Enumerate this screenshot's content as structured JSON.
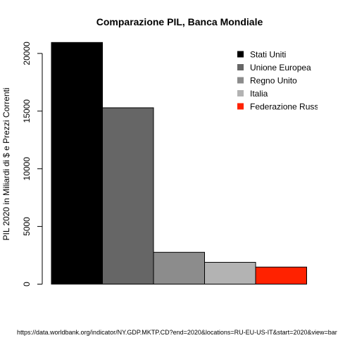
{
  "chart_data": {
    "type": "bar",
    "title": "Comparazione PIL, Banca Mondiale",
    "ylabel": "PIL 2020 in Miliardi di $ e Prezzi Correnti",
    "xlabel": "",
    "ylim": [
      0,
      21000
    ],
    "yticks": [
      0,
      5000,
      10000,
      15000,
      20000
    ],
    "grid": false,
    "legend_position": "top-right",
    "categories": [
      "Stati Uniti",
      "Unione Europea",
      "Regno Unito",
      "Italia",
      "Federazione Russa"
    ],
    "values": [
      20950,
      15290,
      2760,
      1890,
      1480
    ],
    "colors": [
      "#000000",
      "#666666",
      "#8c8c8c",
      "#b3b3b3",
      "#ff2200"
    ],
    "legend": [
      {
        "label": "Stati Uniti",
        "color": "#000000"
      },
      {
        "label": "Unione Europea",
        "color": "#666666"
      },
      {
        "label": "Regno Unito",
        "color": "#8c8c8c"
      },
      {
        "label": "Italia",
        "color": "#b3b3b3"
      },
      {
        "label": "Federazione Russa",
        "color": "#ff2200"
      }
    ],
    "source": "https://data.worldbank.org/indicator/NY.GDP.MKTP.CD?end=2020&locations=RU-EU-US-IT&start=2020&view=bar"
  }
}
